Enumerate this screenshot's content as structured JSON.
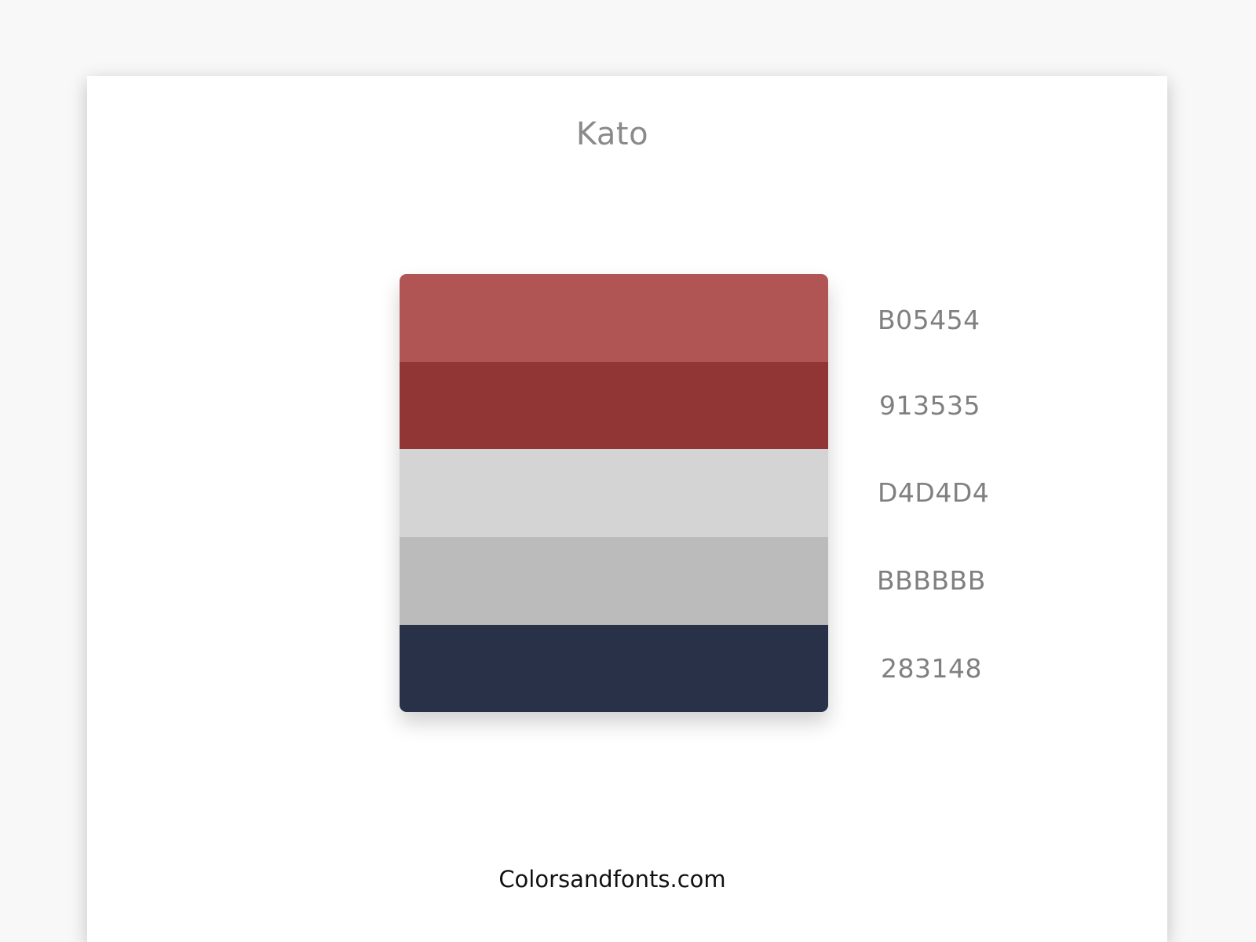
{
  "palette": {
    "name": "Kato",
    "colors": [
      {
        "hex": "B05454",
        "color": "#B05454"
      },
      {
        "hex": "913535",
        "color": "#913535"
      },
      {
        "hex": "D4D4D4",
        "color": "#D4D4D4"
      },
      {
        "hex": "BBBBBB",
        "color": "#BBBBBB"
      },
      {
        "hex": "283148",
        "color": "#283148"
      }
    ]
  },
  "footer": {
    "site": "Colorsandfonts.com"
  }
}
